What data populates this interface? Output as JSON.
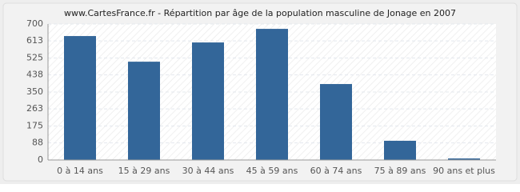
{
  "chart_data": {
    "type": "bar",
    "title": "www.CartesFrance.fr - Répartition par âge de la population masculine de Jonage en 2007",
    "categories": [
      "0 à 14 ans",
      "15 à 29 ans",
      "30 à 44 ans",
      "45 à 59 ans",
      "60 à 74 ans",
      "75 à 89 ans",
      "90 ans et plus"
    ],
    "values": [
      638,
      506,
      605,
      675,
      391,
      99,
      8
    ],
    "color": "#336699",
    "ylim": [
      0,
      700
    ],
    "yticks": [
      0,
      88,
      175,
      263,
      350,
      438,
      525,
      613,
      700
    ],
    "grid": true
  }
}
